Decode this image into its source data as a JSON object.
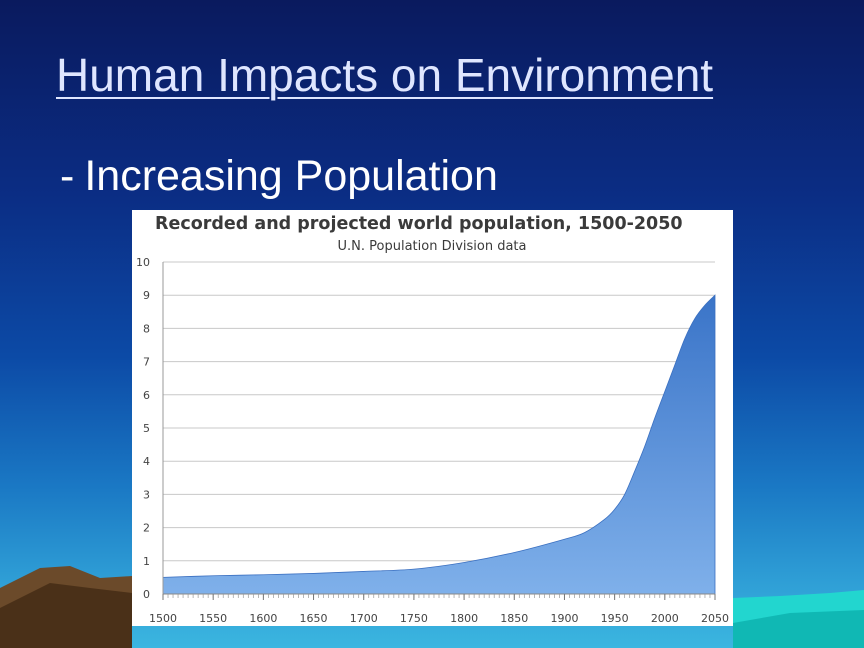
{
  "slide": {
    "title": "Human Impacts on Environment",
    "bullet_dash": "-",
    "bullet_text": "Increasing Population"
  },
  "colors": {
    "background_top": "#0a1a5e",
    "background_bottom": "#3bb6e0",
    "title_text": "#dfe6ff",
    "area_fill_top": "#3a74c8",
    "area_fill_bottom": "#7fb0ea",
    "grid": "#c8c8c8"
  },
  "chart_data": {
    "type": "area",
    "title": "Recorded and projected world population, 1500-2050",
    "subtitle": "U.N. Population Division data",
    "xlabel": "",
    "ylabel": "",
    "xlim": [
      1500,
      2050
    ],
    "ylim": [
      0,
      10
    ],
    "grid": true,
    "x_ticks": [
      1500,
      1550,
      1600,
      1650,
      1700,
      1750,
      1800,
      1850,
      1900,
      1950,
      2000,
      2050
    ],
    "y_ticks": [
      0,
      1,
      2,
      3,
      4,
      5,
      6,
      7,
      8,
      9,
      10
    ],
    "series": [
      {
        "x": [
          1500,
          1550,
          1600,
          1650,
          1700,
          1750,
          1800,
          1850,
          1900,
          1920,
          1940,
          1950,
          1960,
          1970,
          1980,
          1990,
          2000,
          2010,
          2020,
          2030,
          2040,
          2050
        ],
        "y": [
          0.5,
          0.55,
          0.58,
          0.62,
          0.68,
          0.75,
          0.95,
          1.25,
          1.65,
          1.85,
          2.25,
          2.55,
          3.0,
          3.7,
          4.45,
          5.3,
          6.1,
          6.9,
          7.7,
          8.3,
          8.7,
          9.0
        ]
      }
    ]
  }
}
